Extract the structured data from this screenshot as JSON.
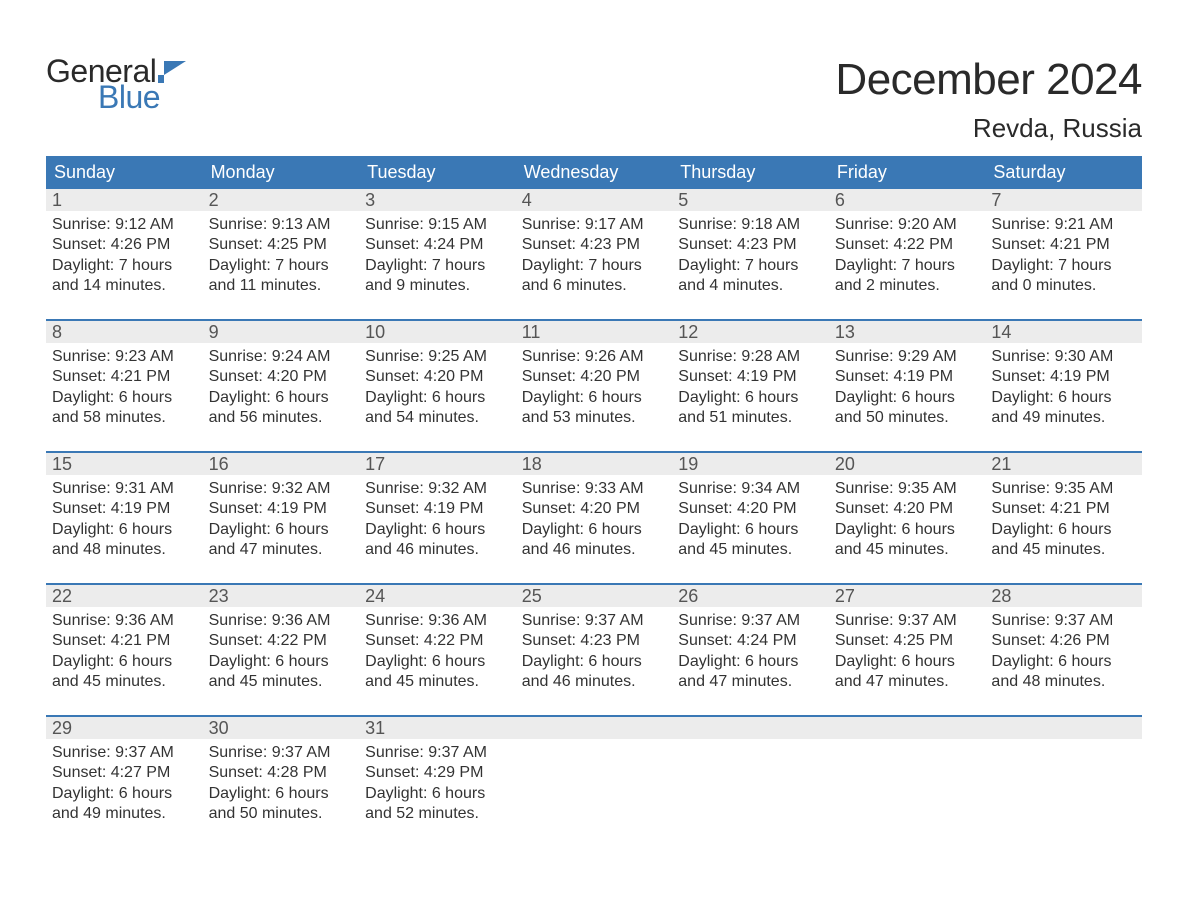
{
  "brand": {
    "word1": "General",
    "word2": "Blue",
    "accent_color": "#3a78b5"
  },
  "title": "December 2024",
  "location": "Revda, Russia",
  "colors": {
    "header_bg": "#3a78b5",
    "header_text": "#ffffff",
    "daynum_bg": "#ececec",
    "daynum_text": "#555555",
    "body_text": "#333333",
    "page_bg": "#ffffff",
    "week_divider": "#3a78b5"
  },
  "day_names": [
    "Sunday",
    "Monday",
    "Tuesday",
    "Wednesday",
    "Thursday",
    "Friday",
    "Saturday"
  ],
  "weeks": [
    [
      {
        "n": 1,
        "sunrise": "9:12 AM",
        "sunset": "4:26 PM",
        "dl1": "Daylight: 7 hours",
        "dl2": "and 14 minutes."
      },
      {
        "n": 2,
        "sunrise": "9:13 AM",
        "sunset": "4:25 PM",
        "dl1": "Daylight: 7 hours",
        "dl2": "and 11 minutes."
      },
      {
        "n": 3,
        "sunrise": "9:15 AM",
        "sunset": "4:24 PM",
        "dl1": "Daylight: 7 hours",
        "dl2": "and 9 minutes."
      },
      {
        "n": 4,
        "sunrise": "9:17 AM",
        "sunset": "4:23 PM",
        "dl1": "Daylight: 7 hours",
        "dl2": "and 6 minutes."
      },
      {
        "n": 5,
        "sunrise": "9:18 AM",
        "sunset": "4:23 PM",
        "dl1": "Daylight: 7 hours",
        "dl2": "and 4 minutes."
      },
      {
        "n": 6,
        "sunrise": "9:20 AM",
        "sunset": "4:22 PM",
        "dl1": "Daylight: 7 hours",
        "dl2": "and 2 minutes."
      },
      {
        "n": 7,
        "sunrise": "9:21 AM",
        "sunset": "4:21 PM",
        "dl1": "Daylight: 7 hours",
        "dl2": "and 0 minutes."
      }
    ],
    [
      {
        "n": 8,
        "sunrise": "9:23 AM",
        "sunset": "4:21 PM",
        "dl1": "Daylight: 6 hours",
        "dl2": "and 58 minutes."
      },
      {
        "n": 9,
        "sunrise": "9:24 AM",
        "sunset": "4:20 PM",
        "dl1": "Daylight: 6 hours",
        "dl2": "and 56 minutes."
      },
      {
        "n": 10,
        "sunrise": "9:25 AM",
        "sunset": "4:20 PM",
        "dl1": "Daylight: 6 hours",
        "dl2": "and 54 minutes."
      },
      {
        "n": 11,
        "sunrise": "9:26 AM",
        "sunset": "4:20 PM",
        "dl1": "Daylight: 6 hours",
        "dl2": "and 53 minutes."
      },
      {
        "n": 12,
        "sunrise": "9:28 AM",
        "sunset": "4:19 PM",
        "dl1": "Daylight: 6 hours",
        "dl2": "and 51 minutes."
      },
      {
        "n": 13,
        "sunrise": "9:29 AM",
        "sunset": "4:19 PM",
        "dl1": "Daylight: 6 hours",
        "dl2": "and 50 minutes."
      },
      {
        "n": 14,
        "sunrise": "9:30 AM",
        "sunset": "4:19 PM",
        "dl1": "Daylight: 6 hours",
        "dl2": "and 49 minutes."
      }
    ],
    [
      {
        "n": 15,
        "sunrise": "9:31 AM",
        "sunset": "4:19 PM",
        "dl1": "Daylight: 6 hours",
        "dl2": "and 48 minutes."
      },
      {
        "n": 16,
        "sunrise": "9:32 AM",
        "sunset": "4:19 PM",
        "dl1": "Daylight: 6 hours",
        "dl2": "and 47 minutes."
      },
      {
        "n": 17,
        "sunrise": "9:32 AM",
        "sunset": "4:19 PM",
        "dl1": "Daylight: 6 hours",
        "dl2": "and 46 minutes."
      },
      {
        "n": 18,
        "sunrise": "9:33 AM",
        "sunset": "4:20 PM",
        "dl1": "Daylight: 6 hours",
        "dl2": "and 46 minutes."
      },
      {
        "n": 19,
        "sunrise": "9:34 AM",
        "sunset": "4:20 PM",
        "dl1": "Daylight: 6 hours",
        "dl2": "and 45 minutes."
      },
      {
        "n": 20,
        "sunrise": "9:35 AM",
        "sunset": "4:20 PM",
        "dl1": "Daylight: 6 hours",
        "dl2": "and 45 minutes."
      },
      {
        "n": 21,
        "sunrise": "9:35 AM",
        "sunset": "4:21 PM",
        "dl1": "Daylight: 6 hours",
        "dl2": "and 45 minutes."
      }
    ],
    [
      {
        "n": 22,
        "sunrise": "9:36 AM",
        "sunset": "4:21 PM",
        "dl1": "Daylight: 6 hours",
        "dl2": "and 45 minutes."
      },
      {
        "n": 23,
        "sunrise": "9:36 AM",
        "sunset": "4:22 PM",
        "dl1": "Daylight: 6 hours",
        "dl2": "and 45 minutes."
      },
      {
        "n": 24,
        "sunrise": "9:36 AM",
        "sunset": "4:22 PM",
        "dl1": "Daylight: 6 hours",
        "dl2": "and 45 minutes."
      },
      {
        "n": 25,
        "sunrise": "9:37 AM",
        "sunset": "4:23 PM",
        "dl1": "Daylight: 6 hours",
        "dl2": "and 46 minutes."
      },
      {
        "n": 26,
        "sunrise": "9:37 AM",
        "sunset": "4:24 PM",
        "dl1": "Daylight: 6 hours",
        "dl2": "and 47 minutes."
      },
      {
        "n": 27,
        "sunrise": "9:37 AM",
        "sunset": "4:25 PM",
        "dl1": "Daylight: 6 hours",
        "dl2": "and 47 minutes."
      },
      {
        "n": 28,
        "sunrise": "9:37 AM",
        "sunset": "4:26 PM",
        "dl1": "Daylight: 6 hours",
        "dl2": "and 48 minutes."
      }
    ],
    [
      {
        "n": 29,
        "sunrise": "9:37 AM",
        "sunset": "4:27 PM",
        "dl1": "Daylight: 6 hours",
        "dl2": "and 49 minutes."
      },
      {
        "n": 30,
        "sunrise": "9:37 AM",
        "sunset": "4:28 PM",
        "dl1": "Daylight: 6 hours",
        "dl2": "and 50 minutes."
      },
      {
        "n": 31,
        "sunrise": "9:37 AM",
        "sunset": "4:29 PM",
        "dl1": "Daylight: 6 hours",
        "dl2": "and 52 minutes."
      },
      null,
      null,
      null,
      null
    ]
  ],
  "labels": {
    "sunrise": "Sunrise:",
    "sunset": "Sunset:"
  }
}
